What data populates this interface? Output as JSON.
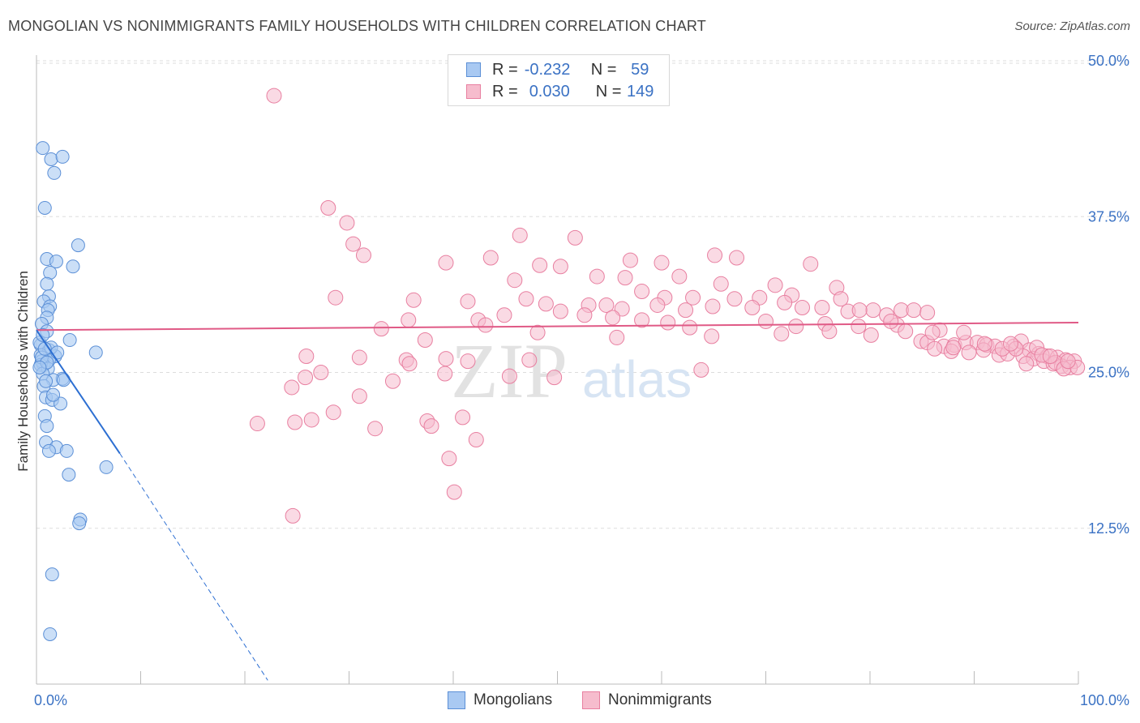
{
  "title": "MONGOLIAN VS NONIMMIGRANTS FAMILY HOUSEHOLDS WITH CHILDREN CORRELATION CHART",
  "source": "Source: ZipAtlas.com",
  "watermark": {
    "zip": "ZIP",
    "atlas": "atlas"
  },
  "legend": {
    "mongolians": {
      "r_label": "R =",
      "r_value": "-0.232",
      "n_label": "N =",
      "n_value": "59"
    },
    "nonimmigrants": {
      "r_label": "R =",
      "r_value": "0.030",
      "n_label": "N =",
      "n_value": "149"
    }
  },
  "bottom_legend": {
    "mongolians": "Mongolians",
    "nonimmigrants": "Nonimmigrants"
  },
  "colors": {
    "mongolians_fill": "#a9c9f2",
    "mongolians_stroke": "#5b8fd6",
    "mongolians_line": "#2d6fd2",
    "nonimmigrants_fill": "#f6bccd",
    "nonimmigrants_stroke": "#e87fa0",
    "nonimmigrants_line": "#e05a86",
    "axis_text": "#3b72c4",
    "grid": "#dddddd"
  },
  "chart_data": {
    "type": "scatter",
    "title": "MONGOLIAN VS NONIMMIGRANTS FAMILY HOUSEHOLDS WITH CHILDREN CORRELATION CHART",
    "xlabel": "",
    "ylabel": "Family Households with Children",
    "xlim": [
      0,
      100
    ],
    "ylim": [
      0,
      52
    ],
    "x_tick_labels": [
      "0.0%",
      "100.0%"
    ],
    "y_ticks": [
      12.5,
      25.0,
      37.5,
      50.0
    ],
    "y_tick_labels": [
      "12.5%",
      "25.0%",
      "37.5%",
      "50.0%"
    ],
    "series": [
      {
        "name": "Mongolians",
        "trend": {
          "x0": 0,
          "y0": 28.4,
          "x1": 8.0,
          "y1": 18.5,
          "x_dash_end": 22.2,
          "y_dash_end": 0.3
        },
        "points": [
          [
            0.6,
            43.0
          ],
          [
            1.4,
            42.1
          ],
          [
            2.5,
            42.3
          ],
          [
            1.7,
            41.0
          ],
          [
            0.8,
            38.2
          ],
          [
            4.0,
            35.2
          ],
          [
            1.0,
            34.1
          ],
          [
            1.9,
            33.9
          ],
          [
            3.5,
            33.5
          ],
          [
            1.3,
            33.0
          ],
          [
            1.0,
            32.1
          ],
          [
            1.2,
            31.1
          ],
          [
            0.7,
            30.7
          ],
          [
            1.3,
            30.3
          ],
          [
            1.1,
            30.0
          ],
          [
            1.0,
            29.4
          ],
          [
            0.5,
            28.9
          ],
          [
            1.0,
            28.3
          ],
          [
            3.2,
            27.6
          ],
          [
            0.4,
            27.2
          ],
          [
            1.2,
            26.8
          ],
          [
            0.4,
            26.4
          ],
          [
            1.8,
            26.3
          ],
          [
            1.2,
            26.0
          ],
          [
            0.7,
            25.6
          ],
          [
            5.7,
            26.6
          ],
          [
            0.5,
            25.9
          ],
          [
            0.4,
            25.6
          ],
          [
            1.1,
            25.3
          ],
          [
            0.6,
            24.9
          ],
          [
            2.5,
            24.5
          ],
          [
            1.6,
            24.4
          ],
          [
            0.7,
            23.9
          ],
          [
            0.9,
            23.0
          ],
          [
            1.5,
            22.8
          ],
          [
            2.3,
            22.5
          ],
          [
            0.8,
            21.5
          ],
          [
            1.0,
            20.7
          ],
          [
            0.9,
            19.4
          ],
          [
            1.9,
            19.0
          ],
          [
            1.2,
            18.7
          ],
          [
            2.9,
            18.7
          ],
          [
            6.7,
            17.4
          ],
          [
            3.1,
            16.8
          ],
          [
            4.2,
            13.2
          ],
          [
            4.1,
            12.9
          ],
          [
            1.5,
            8.8
          ],
          [
            1.3,
            4.0
          ],
          [
            0.3,
            27.4
          ],
          [
            0.6,
            28.0
          ],
          [
            1.4,
            27.0
          ],
          [
            0.5,
            26.2
          ],
          [
            1.0,
            25.8
          ],
          [
            0.9,
            24.3
          ],
          [
            1.6,
            23.2
          ],
          [
            0.3,
            25.4
          ],
          [
            2.0,
            26.6
          ],
          [
            0.8,
            26.9
          ],
          [
            2.6,
            24.4
          ]
        ]
      },
      {
        "name": "Nonimmigrants",
        "trend": {
          "x0": 0,
          "y0": 28.4,
          "x1": 100,
          "y1": 29.0
        },
        "points": [
          [
            22.8,
            47.2
          ],
          [
            28.0,
            38.2
          ],
          [
            29.8,
            37.0
          ],
          [
            30.4,
            35.3
          ],
          [
            46.4,
            36.0
          ],
          [
            51.7,
            35.8
          ],
          [
            31.4,
            34.4
          ],
          [
            43.6,
            34.2
          ],
          [
            39.3,
            33.8
          ],
          [
            48.3,
            33.6
          ],
          [
            50.3,
            33.5
          ],
          [
            57.0,
            34.0
          ],
          [
            60.0,
            33.8
          ],
          [
            65.1,
            34.4
          ],
          [
            67.2,
            34.2
          ],
          [
            74.3,
            33.7
          ],
          [
            53.8,
            32.7
          ],
          [
            56.5,
            32.6
          ],
          [
            61.7,
            32.7
          ],
          [
            65.7,
            32.1
          ],
          [
            70.9,
            32.0
          ],
          [
            76.8,
            31.8
          ],
          [
            72.5,
            31.2
          ],
          [
            58.1,
            31.5
          ],
          [
            45.9,
            32.4
          ],
          [
            60.3,
            31.0
          ],
          [
            63.0,
            31.0
          ],
          [
            67.0,
            30.9
          ],
          [
            69.4,
            31.0
          ],
          [
            71.8,
            30.6
          ],
          [
            77.2,
            30.9
          ],
          [
            80.3,
            30.0
          ],
          [
            28.7,
            31.0
          ],
          [
            36.2,
            30.8
          ],
          [
            41.4,
            30.7
          ],
          [
            47.0,
            30.9
          ],
          [
            48.9,
            30.5
          ],
          [
            53.0,
            30.4
          ],
          [
            54.7,
            30.4
          ],
          [
            56.2,
            30.1
          ],
          [
            59.6,
            30.4
          ],
          [
            62.3,
            30.0
          ],
          [
            64.9,
            30.3
          ],
          [
            68.7,
            30.2
          ],
          [
            73.5,
            30.2
          ],
          [
            75.4,
            30.2
          ],
          [
            77.9,
            29.9
          ],
          [
            79.0,
            30.0
          ],
          [
            81.6,
            29.6
          ],
          [
            83.0,
            30.0
          ],
          [
            84.2,
            30.0
          ],
          [
            85.5,
            29.8
          ],
          [
            35.7,
            29.2
          ],
          [
            42.4,
            29.2
          ],
          [
            44.9,
            29.6
          ],
          [
            50.3,
            29.9
          ],
          [
            52.6,
            29.6
          ],
          [
            55.3,
            29.4
          ],
          [
            58.1,
            29.2
          ],
          [
            60.6,
            29.0
          ],
          [
            62.7,
            28.6
          ],
          [
            70.0,
            29.1
          ],
          [
            72.9,
            28.7
          ],
          [
            75.7,
            28.9
          ],
          [
            78.9,
            28.7
          ],
          [
            82.6,
            28.8
          ],
          [
            86.7,
            28.4
          ],
          [
            33.1,
            28.5
          ],
          [
            43.1,
            28.8
          ],
          [
            37.3,
            27.6
          ],
          [
            48.1,
            28.2
          ],
          [
            55.7,
            27.8
          ],
          [
            64.8,
            27.9
          ],
          [
            71.5,
            28.1
          ],
          [
            76.1,
            28.3
          ],
          [
            80.1,
            28.0
          ],
          [
            83.4,
            28.3
          ],
          [
            84.9,
            27.5
          ],
          [
            87.1,
            27.1
          ],
          [
            88.1,
            27.2
          ],
          [
            89.2,
            27.4
          ],
          [
            90.3,
            27.4
          ],
          [
            91.2,
            27.2
          ],
          [
            92.0,
            27.1
          ],
          [
            93.8,
            27.1
          ],
          [
            94.5,
            27.5
          ],
          [
            95.3,
            26.8
          ],
          [
            96.2,
            26.5
          ],
          [
            97.0,
            26.3
          ],
          [
            98.0,
            26.2
          ],
          [
            98.8,
            26.0
          ],
          [
            99.6,
            25.9
          ],
          [
            85.5,
            27.4
          ],
          [
            86.2,
            26.9
          ],
          [
            87.8,
            26.7
          ],
          [
            89.5,
            26.6
          ],
          [
            90.9,
            26.8
          ],
          [
            92.4,
            26.4
          ],
          [
            93.2,
            26.5
          ],
          [
            94.7,
            26.3
          ],
          [
            95.7,
            26.1
          ],
          [
            96.7,
            25.9
          ],
          [
            97.6,
            25.7
          ],
          [
            98.4,
            25.5
          ],
          [
            99.2,
            25.4
          ],
          [
            25.9,
            26.3
          ],
          [
            35.5,
            26.0
          ],
          [
            39.3,
            26.1
          ],
          [
            41.4,
            25.9
          ],
          [
            47.3,
            26.0
          ],
          [
            31.0,
            26.2
          ],
          [
            89.0,
            28.2
          ],
          [
            92.7,
            26.9
          ],
          [
            94.0,
            26.9
          ],
          [
            96.0,
            27.0
          ],
          [
            97.8,
            25.8
          ],
          [
            98.6,
            25.3
          ],
          [
            99.9,
            25.4
          ],
          [
            96.5,
            26.4
          ],
          [
            25.8,
            24.6
          ],
          [
            27.3,
            25.0
          ],
          [
            39.2,
            24.9
          ],
          [
            45.4,
            24.7
          ],
          [
            49.7,
            24.6
          ],
          [
            63.8,
            25.2
          ],
          [
            24.5,
            23.8
          ],
          [
            31.0,
            23.1
          ],
          [
            34.2,
            24.3
          ],
          [
            35.8,
            25.7
          ],
          [
            28.5,
            21.8
          ],
          [
            21.2,
            20.9
          ],
          [
            24.8,
            21.0
          ],
          [
            26.4,
            21.2
          ],
          [
            32.5,
            20.5
          ],
          [
            37.5,
            21.1
          ],
          [
            37.9,
            20.7
          ],
          [
            40.9,
            21.4
          ],
          [
            42.2,
            19.6
          ],
          [
            39.6,
            18.1
          ],
          [
            40.1,
            15.4
          ],
          [
            24.6,
            13.5
          ],
          [
            88.0,
            27.0
          ],
          [
            91.0,
            27.3
          ],
          [
            86.0,
            28.2
          ],
          [
            95.0,
            25.7
          ],
          [
            97.3,
            26.3
          ],
          [
            99.0,
            25.9
          ],
          [
            93.5,
            27.3
          ],
          [
            82.0,
            29.1
          ]
        ]
      }
    ]
  }
}
